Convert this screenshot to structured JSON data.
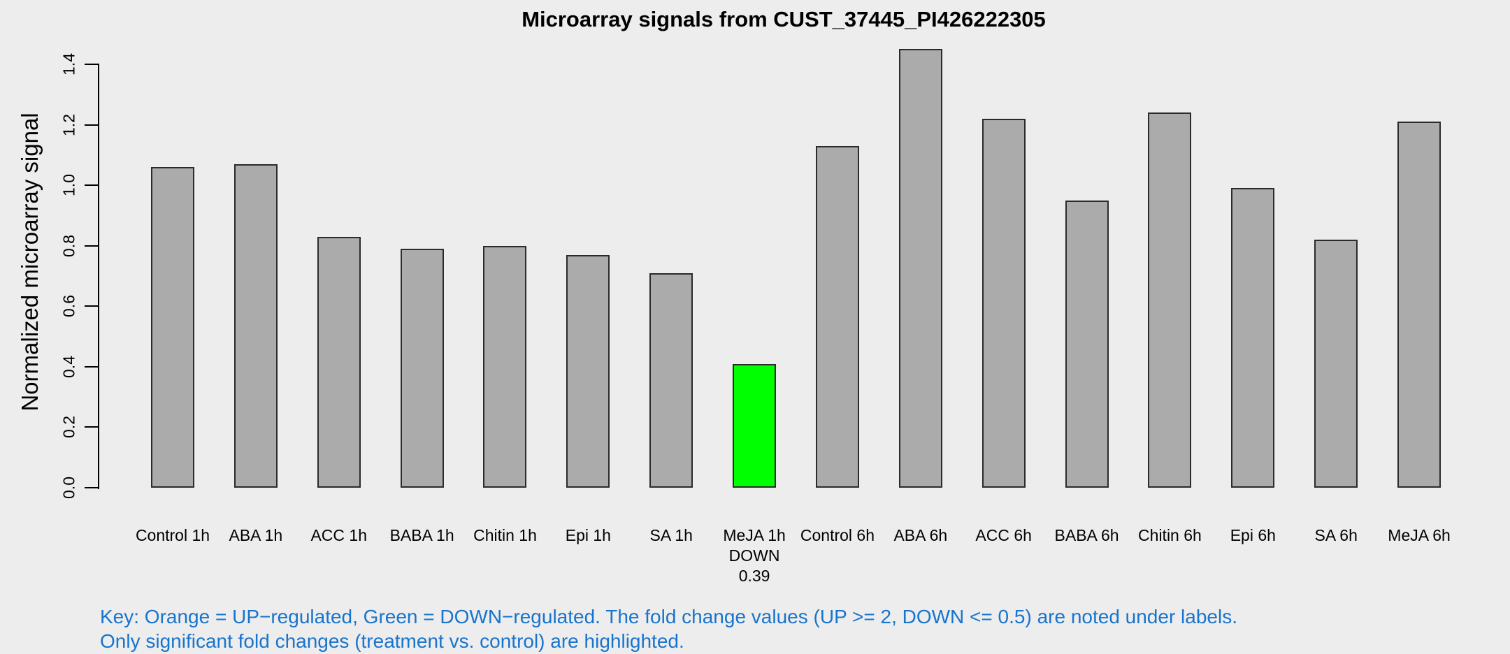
{
  "title": "Microarray signals from CUST_37445_PI426222305",
  "y_axis_label": "Normalized microarray signal",
  "key": {
    "line1": "Key: Orange = UP−regulated, Green = DOWN−regulated. The fold change values (UP >= 2, DOWN <= 0.5) are noted under labels.",
    "line2": "Only significant fold changes (treatment vs. control) are highlighted.",
    "text_color": "#1874CD"
  },
  "colors": {
    "background": "#EDEDED",
    "bar_fill": "#ABABAB",
    "bar_down_fill": "#00FF00",
    "bar_border": "#2B2B2B",
    "axis": "#000000"
  },
  "chart_data": {
    "type": "bar",
    "title": "Microarray signals from CUST_37445_PI426222305",
    "xlabel": "",
    "ylabel": "Normalized microarray signal",
    "ylim": [
      0,
      1.4
    ],
    "yticks": [
      0.0,
      0.2,
      0.4,
      0.6,
      0.8,
      1.0,
      1.2,
      1.4
    ],
    "grid": false,
    "legend_position": "none",
    "categories": [
      "Control 1h",
      "ABA 1h",
      "ACC 1h",
      "BABA 1h",
      "Chitin 1h",
      "Epi 1h",
      "SA 1h",
      "MeJA 1h",
      "Control 6h",
      "ABA 6h",
      "ACC 6h",
      "BABA 6h",
      "Chitin 6h",
      "Epi 6h",
      "SA 6h",
      "MeJA 6h"
    ],
    "values": [
      1.06,
      1.07,
      0.83,
      0.79,
      0.8,
      0.77,
      0.71,
      0.41,
      1.13,
      1.45,
      1.22,
      0.95,
      1.24,
      0.99,
      0.82,
      1.21
    ],
    "highlights": [
      {
        "index": 7,
        "category": "MeJA 1h",
        "direction": "DOWN",
        "fold_change": "0.39",
        "color": "#00FF00",
        "sublabels": [
          "DOWN",
          "0.39"
        ]
      }
    ]
  }
}
